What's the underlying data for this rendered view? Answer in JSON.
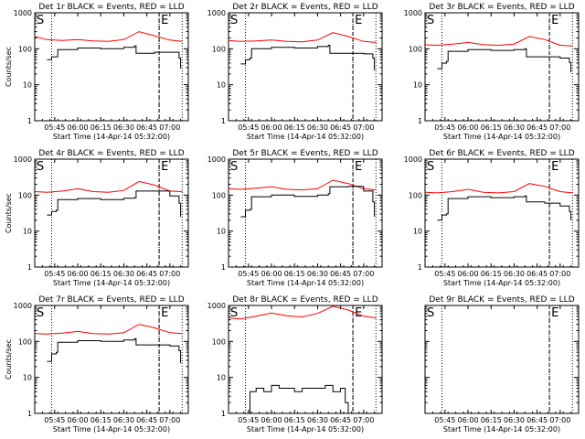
{
  "chart_data": [
    {
      "type": "line",
      "panel": 1,
      "title": "Det 1r BLACK = Events, RED = LLD",
      "xlabel": "Start Time (14-Apr-14 05:32:00)",
      "ylabel": "Counts/sec",
      "x_ticks": [
        "05:45",
        "06:00",
        "06:15",
        "06:30",
        "06:45",
        "07:00"
      ],
      "y_ticks": [
        "1",
        "10",
        "100",
        "1000"
      ],
      "ylog": true,
      "ylim": [
        1,
        1000
      ],
      "xlim": [
        "05:32",
        "07:12"
      ],
      "markers": [
        {
          "label": "S",
          "x": "05:32"
        },
        {
          "label": "E",
          "x": "06:53"
        }
      ],
      "dotted_lines": [
        "05:43",
        "06:53",
        "07:08"
      ],
      "series": [
        {
          "name": "RED = LLD",
          "color": "#ff0000",
          "x": [
            "05:32",
            "05:40",
            "05:50",
            "06:00",
            "06:10",
            "06:20",
            "06:30",
            "06:40",
            "06:50",
            "07:00",
            "07:08"
          ],
          "values": [
            220,
            180,
            170,
            180,
            165,
            160,
            180,
            300,
            230,
            175,
            160
          ]
        },
        {
          "name": "BLACK = Events",
          "color": "#000000",
          "x": [
            "05:40",
            "05:43",
            "05:46",
            "05:47",
            "06:00",
            "06:15",
            "06:30",
            "06:37",
            "06:38",
            "06:50",
            "07:00",
            "07:06",
            "07:07"
          ],
          "values": [
            50,
            60,
            60,
            95,
            105,
            100,
            110,
            120,
            75,
            80,
            80,
            55,
            28
          ]
        }
      ]
    },
    {
      "type": "line",
      "panel": 2,
      "title": "Det 2r BLACK = Events, RED = LLD",
      "xlabel": "Start Time (14-Apr-14 05:32:00)",
      "ylabel": "",
      "x_ticks": [
        "05:45",
        "06:00",
        "06:15",
        "06:30",
        "06:45",
        "07:00"
      ],
      "y_ticks": [
        "1",
        "10",
        "100",
        "1000"
      ],
      "ylog": true,
      "ylim": [
        1,
        1000
      ],
      "xlim": [
        "05:32",
        "07:12"
      ],
      "markers": [
        {
          "label": "S",
          "x": "05:32"
        },
        {
          "label": "E",
          "x": "06:53"
        }
      ],
      "dotted_lines": [
        "05:43",
        "06:53",
        "07:08"
      ],
      "series": [
        {
          "name": "RED = LLD",
          "color": "#ff0000",
          "x": [
            "05:32",
            "05:40",
            "05:50",
            "06:00",
            "06:10",
            "06:20",
            "06:30",
            "06:40",
            "06:50",
            "07:00",
            "07:08"
          ],
          "values": [
            170,
            160,
            165,
            175,
            160,
            155,
            175,
            280,
            220,
            160,
            150
          ]
        },
        {
          "name": "BLACK = Events",
          "color": "#000000",
          "x": [
            "05:40",
            "05:43",
            "05:46",
            "05:47",
            "06:00",
            "06:15",
            "06:30",
            "06:37",
            "06:38",
            "06:50",
            "07:00",
            "07:06",
            "07:07"
          ],
          "values": [
            38,
            50,
            55,
            100,
            110,
            105,
            115,
            125,
            75,
            75,
            72,
            55,
            25
          ]
        }
      ]
    },
    {
      "type": "line",
      "panel": 3,
      "title": "Det 3r BLACK = Events, RED = LLD",
      "xlabel": "Start Time (14-Apr-14 05:32:00)",
      "ylabel": "",
      "x_ticks": [
        "05:45",
        "06:00",
        "06:15",
        "06:30",
        "06:45",
        "07:00"
      ],
      "y_ticks": [
        "1",
        "10",
        "100",
        "1000"
      ],
      "ylog": true,
      "ylim": [
        1,
        1000
      ],
      "xlim": [
        "05:32",
        "07:12"
      ],
      "markers": [
        {
          "label": "S",
          "x": "05:32"
        },
        {
          "label": "E",
          "x": "06:53"
        }
      ],
      "dotted_lines": [
        "05:43",
        "06:53",
        "07:08"
      ],
      "series": [
        {
          "name": "RED = LLD",
          "color": "#ff0000",
          "x": [
            "05:32",
            "05:40",
            "05:50",
            "06:00",
            "06:10",
            "06:20",
            "06:30",
            "06:40",
            "06:50",
            "07:00",
            "07:08"
          ],
          "values": [
            130,
            125,
            135,
            150,
            130,
            125,
            135,
            220,
            180,
            125,
            120
          ]
        },
        {
          "name": "BLACK = Events",
          "color": "#000000",
          "x": [
            "05:40",
            "05:43",
            "05:46",
            "05:47",
            "06:00",
            "06:15",
            "06:30",
            "06:37",
            "06:38",
            "06:50",
            "07:00",
            "07:06",
            "07:07"
          ],
          "values": [
            28,
            40,
            45,
            85,
            95,
            90,
            95,
            100,
            60,
            60,
            55,
            42,
            22
          ]
        }
      ]
    },
    {
      "type": "line",
      "panel": 4,
      "title": "Det 4r BLACK = Events, RED = LLD",
      "xlabel": "Start Time (14-Apr-14 05:32:00)",
      "ylabel": "Counts/sec",
      "x_ticks": [
        "05:45",
        "06:00",
        "06:15",
        "06:30",
        "06:45",
        "07:00"
      ],
      "y_ticks": [
        "1",
        "10",
        "100",
        "1000"
      ],
      "ylog": true,
      "ylim": [
        1,
        1000
      ],
      "xlim": [
        "05:32",
        "07:12"
      ],
      "markers": [
        {
          "label": "S",
          "x": "05:32"
        },
        {
          "label": "E",
          "x": "06:53"
        }
      ],
      "dotted_lines": [
        "05:43",
        "06:53",
        "07:08"
      ],
      "series": [
        {
          "name": "RED = LLD",
          "color": "#ff0000",
          "x": [
            "05:32",
            "05:40",
            "05:50",
            "06:00",
            "06:10",
            "06:20",
            "06:30",
            "06:40",
            "06:50",
            "07:00",
            "07:08"
          ],
          "values": [
            125,
            120,
            130,
            150,
            125,
            120,
            135,
            240,
            190,
            130,
            125
          ]
        },
        {
          "name": "BLACK = Events",
          "color": "#000000",
          "x": [
            "05:40",
            "05:43",
            "05:46",
            "05:47",
            "06:00",
            "06:15",
            "06:30",
            "06:37",
            "06:38",
            "06:50",
            "07:00",
            "07:06",
            "07:07"
          ],
          "values": [
            28,
            35,
            38,
            75,
            80,
            75,
            82,
            85,
            130,
            130,
            95,
            60,
            25
          ]
        }
      ]
    },
    {
      "type": "line",
      "panel": 5,
      "title": "Det 5r BLACK = Events, RED = LLD",
      "xlabel": "Start Time (14-Apr-14 05:32:00)",
      "ylabel": "",
      "x_ticks": [
        "05:45",
        "06:00",
        "06:15",
        "06:30",
        "06:45",
        "07:00"
      ],
      "y_ticks": [
        "1",
        "10",
        "100",
        "1000"
      ],
      "ylog": true,
      "ylim": [
        1,
        1000
      ],
      "xlim": [
        "05:32",
        "07:12"
      ],
      "markers": [
        {
          "label": "S",
          "x": "05:32"
        },
        {
          "label": "E",
          "x": "06:53"
        }
      ],
      "dotted_lines": [
        "05:43",
        "06:53",
        "07:08"
      ],
      "series": [
        {
          "name": "RED = LLD",
          "color": "#ff0000",
          "x": [
            "05:32",
            "05:40",
            "05:50",
            "06:00",
            "06:10",
            "06:20",
            "06:30",
            "06:40",
            "06:50",
            "07:00",
            "07:08"
          ],
          "values": [
            150,
            145,
            155,
            170,
            145,
            140,
            150,
            260,
            210,
            150,
            140
          ]
        },
        {
          "name": "BLACK = Events",
          "color": "#000000",
          "x": [
            "05:40",
            "05:43",
            "05:46",
            "05:47",
            "06:00",
            "06:15",
            "06:30",
            "06:37",
            "06:38",
            "06:50",
            "07:00",
            "07:06",
            "07:07"
          ],
          "values": [
            25,
            38,
            40,
            90,
            100,
            92,
            100,
            110,
            170,
            175,
            130,
            65,
            25
          ]
        }
      ]
    },
    {
      "type": "line",
      "panel": 6,
      "title": "Det 6r BLACK = Events, RED = LLD",
      "xlabel": "Start Time (14-Apr-14 05:32:00)",
      "ylabel": "",
      "x_ticks": [
        "05:45",
        "06:00",
        "06:15",
        "06:30",
        "06:45",
        "07:00"
      ],
      "y_ticks": [
        "1",
        "10",
        "100",
        "1000"
      ],
      "ylog": true,
      "ylim": [
        1,
        1000
      ],
      "xlim": [
        "05:32",
        "07:12"
      ],
      "markers": [
        {
          "label": "S",
          "x": "05:32"
        },
        {
          "label": "E",
          "x": "06:53"
        }
      ],
      "dotted_lines": [
        "05:43",
        "06:53",
        "07:08"
      ],
      "series": [
        {
          "name": "RED = LLD",
          "color": "#ff0000",
          "x": [
            "05:32",
            "05:40",
            "05:50",
            "06:00",
            "06:10",
            "06:20",
            "06:30",
            "06:40",
            "06:50",
            "07:00",
            "07:08"
          ],
          "values": [
            120,
            115,
            125,
            145,
            120,
            115,
            125,
            210,
            175,
            125,
            115
          ]
        },
        {
          "name": "BLACK = Events",
          "color": "#000000",
          "x": [
            "05:40",
            "05:43",
            "05:46",
            "05:47",
            "06:00",
            "06:15",
            "06:30",
            "06:37",
            "06:38",
            "06:50",
            "07:00",
            "07:06",
            "07:07"
          ],
          "values": [
            20,
            28,
            30,
            80,
            90,
            85,
            90,
            95,
            65,
            60,
            50,
            35,
            20
          ]
        }
      ]
    },
    {
      "type": "line",
      "panel": 7,
      "title": "Det 7r BLACK = Events, RED = LLD",
      "xlabel": "Start Time (14-Apr-14 05:32:00)",
      "ylabel": "Counts/sec",
      "x_ticks": [
        "05:45",
        "06:00",
        "06:15",
        "06:30",
        "06:45",
        "07:00"
      ],
      "y_ticks": [
        "1",
        "10",
        "100",
        "1000"
      ],
      "ylog": true,
      "ylim": [
        1,
        1000
      ],
      "xlim": [
        "05:32",
        "07:12"
      ],
      "markers": [
        {
          "label": "S",
          "x": "05:32"
        },
        {
          "label": "E",
          "x": "06:53"
        }
      ],
      "dotted_lines": [
        "05:43",
        "06:53",
        "07:08"
      ],
      "series": [
        {
          "name": "RED = LLD",
          "color": "#ff0000",
          "x": [
            "05:32",
            "05:40",
            "05:50",
            "06:00",
            "06:10",
            "06:20",
            "06:30",
            "06:40",
            "06:50",
            "07:00",
            "07:08"
          ],
          "values": [
            165,
            160,
            170,
            190,
            165,
            160,
            175,
            300,
            240,
            175,
            165
          ]
        },
        {
          "name": "BLACK = Events",
          "color": "#000000",
          "x": [
            "05:40",
            "05:43",
            "05:46",
            "05:47",
            "06:00",
            "06:15",
            "06:30",
            "06:37",
            "06:38",
            "06:50",
            "07:00",
            "07:06",
            "07:07"
          ],
          "values": [
            28,
            45,
            50,
            95,
            105,
            100,
            110,
            120,
            80,
            80,
            75,
            55,
            25
          ]
        }
      ]
    },
    {
      "type": "line",
      "panel": 8,
      "title": "Det 8r BLACK = Events, RED = LLD",
      "xlabel": "Start Time (14-Apr-14 05:32:00)",
      "ylabel": "",
      "x_ticks": [
        "05:45",
        "06:00",
        "06:15",
        "06:30",
        "06:45",
        "07:00"
      ],
      "y_ticks": [
        "1",
        "10",
        "100",
        "1000"
      ],
      "ylog": true,
      "ylim": [
        1,
        1000
      ],
      "xlim": [
        "05:32",
        "07:12"
      ],
      "markers": [
        {
          "label": "S",
          "x": "05:32"
        },
        {
          "label": "E",
          "x": "06:53"
        }
      ],
      "dotted_lines": [
        "05:43",
        "06:53",
        "07:08"
      ],
      "series": [
        {
          "name": "RED = LLD",
          "color": "#ff0000",
          "x": [
            "05:32",
            "05:40",
            "05:50",
            "06:00",
            "06:10",
            "06:20",
            "06:30",
            "06:40",
            "06:50",
            "07:00",
            "07:08"
          ],
          "values": [
            450,
            420,
            500,
            620,
            520,
            480,
            600,
            950,
            750,
            500,
            450
          ]
        },
        {
          "name": "BLACK = Events",
          "color": "#000000",
          "x": [
            "05:40",
            "05:43",
            "05:46",
            "05:50",
            "05:55",
            "06:00",
            "06:05",
            "06:10",
            "06:15",
            "06:20",
            "06:25",
            "06:30",
            "06:35",
            "06:40",
            "06:45",
            "06:48",
            "06:50"
          ],
          "values": [
            1,
            1,
            4,
            5,
            4,
            6,
            5,
            5,
            4,
            5,
            5,
            5,
            6,
            4,
            5,
            2,
            1
          ]
        }
      ]
    },
    {
      "type": "line",
      "panel": 9,
      "title": "Det 9r BLACK = Events, RED = LLD",
      "xlabel": "Start Time (14-Apr-14 05:32:00)",
      "ylabel": "",
      "x_ticks": [
        "05:45",
        "06:00",
        "06:15",
        "06:30",
        "06:45",
        "07:00"
      ],
      "y_ticks": [],
      "ylog": true,
      "ylim": [
        1,
        1000
      ],
      "xlim": [
        "05:32",
        "07:12"
      ],
      "markers": [
        {
          "label": "S",
          "x": "05:32"
        },
        {
          "label": "E",
          "x": "06:53"
        }
      ],
      "dotted_lines": [
        "05:43",
        "06:53",
        "07:08"
      ],
      "series": []
    }
  ]
}
